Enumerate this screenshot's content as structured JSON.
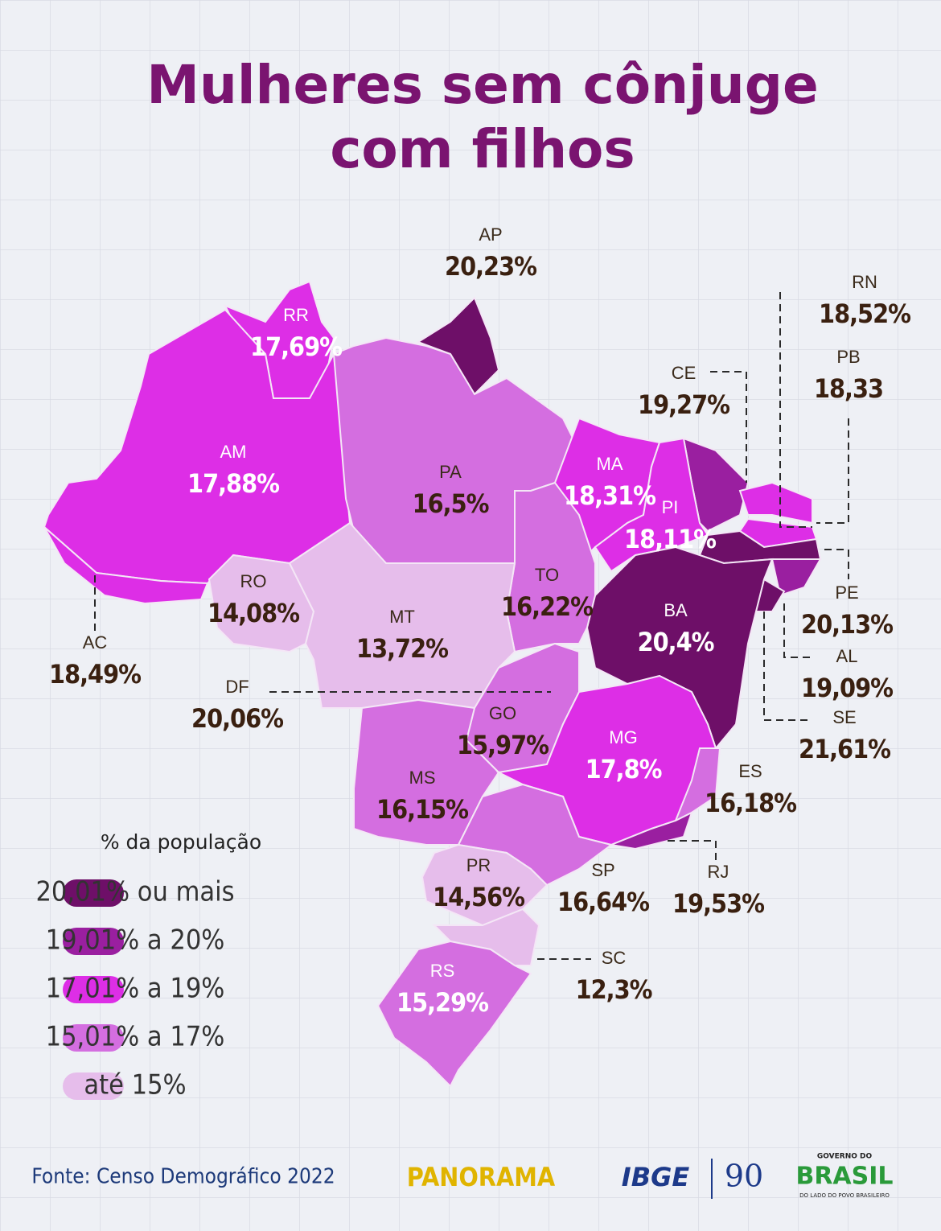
{
  "title": [
    "Mulheres sem cônjuge",
    "com filhos"
  ],
  "states": [
    {
      "abbr": "RR",
      "value": "17,69%",
      "color": "#dd2ee6"
    },
    {
      "abbr": "AP",
      "value": "20,23%",
      "color": "#6e0f68"
    },
    {
      "abbr": "AM",
      "value": "17,88%",
      "color": "#dd2ee6"
    },
    {
      "abbr": "PA",
      "value": "16,5%",
      "color": "#d46ee0"
    },
    {
      "abbr": "MA",
      "value": "18,31%",
      "color": "#dd2ee6"
    },
    {
      "abbr": "CE",
      "value": "19,27%",
      "color": "#9a1fa0"
    },
    {
      "abbr": "PI",
      "value": "18,11%",
      "color": "#dd2ee6"
    },
    {
      "abbr": "RN",
      "value": "18,52%",
      "color": "#dd2ee6"
    },
    {
      "abbr": "PB",
      "value": "18,33",
      "color": "#dd2ee6"
    },
    {
      "abbr": "PE",
      "value": "20,13%",
      "color": "#6e0f68"
    },
    {
      "abbr": "AL",
      "value": "19,09%",
      "color": "#9a1fa0"
    },
    {
      "abbr": "SE",
      "value": "21,61%",
      "color": "#6e0f68"
    },
    {
      "abbr": "BA",
      "value": "20,4%",
      "color": "#6e0f68"
    },
    {
      "abbr": "TO",
      "value": "16,22%",
      "color": "#d46ee0"
    },
    {
      "abbr": "RO",
      "value": "14,08%",
      "color": "#e6bdeb"
    },
    {
      "abbr": "AC",
      "value": "18,49%",
      "color": "#dd2ee6"
    },
    {
      "abbr": "MT",
      "value": "13,72%",
      "color": "#e6bdeb"
    },
    {
      "abbr": "DF",
      "value": "20,06%",
      "color": "#6e0f68"
    },
    {
      "abbr": "GO",
      "value": "15,97%",
      "color": "#d46ee0"
    },
    {
      "abbr": "MS",
      "value": "16,15%",
      "color": "#d46ee0"
    },
    {
      "abbr": "MG",
      "value": "17,8%",
      "color": "#dd2ee6"
    },
    {
      "abbr": "ES",
      "value": "16,18%",
      "color": "#d46ee0"
    },
    {
      "abbr": "SP",
      "value": "16,64%",
      "color": "#d46ee0"
    },
    {
      "abbr": "RJ",
      "value": "19,53%",
      "color": "#9a1fa0"
    },
    {
      "abbr": "PR",
      "value": "14,56%",
      "color": "#e6bdeb"
    },
    {
      "abbr": "SC",
      "value": "12,3%",
      "color": "#e6bdeb"
    },
    {
      "abbr": "RS",
      "value": "15,29%",
      "color": "#d46ee0"
    }
  ],
  "legend": {
    "title": "% da população",
    "items": [
      {
        "label": "20,01% ou mais",
        "color": "#6e0f68"
      },
      {
        "label": "19,01% a 20%",
        "color": "#9a1fa0"
      },
      {
        "label": "17,01% a 19%",
        "color": "#dd2ee6"
      },
      {
        "label": "15,01% a 17%",
        "color": "#d46ee0"
      },
      {
        "label": "até 15%",
        "color": "#e6bdeb"
      }
    ]
  },
  "footer": {
    "source": "Fonte: Censo Demográfico 2022",
    "logos": [
      "PANORAMA",
      "IBGE",
      "90",
      "GOVERNO DO",
      "BRASIL",
      "DO LADO DO POVO BRASILEIRO"
    ]
  }
}
